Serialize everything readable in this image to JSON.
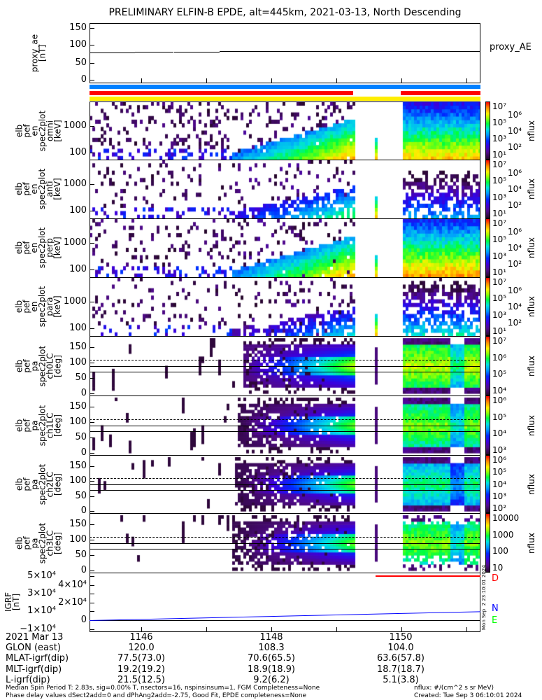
{
  "title": "PRELIMINARY ELFIN-B EPDE, alt=445km, 2021-03-13, North Descending",
  "colors": {
    "blue_bar": "#0080ff",
    "red_bar": "#ff0000",
    "yellow_bar": "#ffee00",
    "N": "#0000ff",
    "E": "#00ff00",
    "D": "#ff0000"
  },
  "chart_data": {
    "type": "heatmap",
    "x_axis": {
      "label": "2021 Mar 13",
      "ticks": [
        "1146",
        "1148",
        "1150"
      ],
      "range_hhmm": [
        1145.2,
        1151.2
      ]
    },
    "proxy_ae": {
      "ylabel": [
        "proxy_ae",
        "[nT]"
      ],
      "legend": "proxy_AE",
      "yticks": [
        "150",
        "100",
        "50",
        "0"
      ],
      "ylim": [
        0,
        150
      ],
      "series": {
        "x": [
          1145.2,
          1145.9,
          1146.5,
          1147.2,
          1151.2
        ],
        "y": [
          80,
          81,
          82,
          83,
          83
        ]
      }
    },
    "spectrograms": [
      {
        "ylabel": [
          "elb",
          "pef",
          "en",
          "spec2plot",
          "omni",
          "[keV]"
        ],
        "yticks": [
          "1000",
          "100"
        ],
        "cbar": [
          "10⁷",
          "10⁶",
          "10⁵",
          "10⁴",
          "10³",
          "10²",
          "10¹"
        ],
        "cbar_label": "nflux"
      },
      {
        "ylabel": [
          "elb",
          "pef",
          "en",
          "spec2plot",
          "anti",
          "[keV]"
        ],
        "yticks": [
          "1000",
          "100"
        ],
        "cbar": [
          "10⁷",
          "10⁶",
          "10⁵",
          "10⁴",
          "10³",
          "10²",
          "10¹"
        ],
        "cbar_label": "nflux"
      },
      {
        "ylabel": [
          "elb",
          "pef",
          "en",
          "spec2plot",
          "perp",
          "[keV]"
        ],
        "yticks": [
          "1000",
          "100"
        ],
        "cbar": [
          "10⁷",
          "10⁶",
          "10⁵",
          "10⁴",
          "10³",
          "10²",
          "10¹"
        ],
        "cbar_label": "nflux"
      },
      {
        "ylabel": [
          "elb",
          "pef",
          "en",
          "spec2plot",
          "para",
          "[keV]"
        ],
        "yticks": [
          "1000",
          "100"
        ],
        "cbar": [
          "10⁷",
          "10⁶",
          "10⁵",
          "10⁴",
          "10³",
          "10²",
          "10¹"
        ],
        "cbar_label": "nflux"
      }
    ],
    "pitch_angle": [
      {
        "ylabel": [
          "elb",
          "pef",
          "pa",
          "spec2plot",
          "ch0LC",
          "[deg]"
        ],
        "yticks": [
          "150",
          "100",
          "50",
          "0"
        ],
        "cbar": [
          "10⁷",
          "10⁶",
          "10⁵",
          "10⁴"
        ],
        "cbar_label": "nflux"
      },
      {
        "ylabel": [
          "elb",
          "pef",
          "pa",
          "spec2plot",
          "ch1LC",
          "[deg]"
        ],
        "yticks": [
          "150",
          "100",
          "50",
          "0"
        ],
        "cbar": [
          "10⁶",
          "10⁵",
          "10⁴",
          "10³"
        ],
        "cbar_label": "nflux"
      },
      {
        "ylabel": [
          "elb",
          "pef",
          "pa",
          "spec2plot",
          "ch2LC",
          "[deg]"
        ],
        "yticks": [
          "150",
          "100",
          "50",
          "0"
        ],
        "cbar": [
          "10⁶",
          "10⁵",
          "10⁴",
          "10³",
          "10²"
        ],
        "cbar_label": "nflux"
      },
      {
        "ylabel": [
          "elb",
          "pef",
          "pa",
          "spec2plot",
          "ch3LC",
          "[deg]"
        ],
        "yticks": [
          "150",
          "100",
          "50",
          "0"
        ],
        "cbar": [
          "10000",
          "1000",
          "100",
          "10"
        ],
        "cbar_label": "nflux"
      }
    ],
    "igrf": {
      "ylabel": [
        "IGRF",
        "[nT]"
      ],
      "yticks": [
        "5×10⁴",
        "4×10⁴",
        "3×10⁴",
        "2×10⁴",
        "1×10⁴",
        "0",
        "−1×10⁴"
      ],
      "ylim": [
        -10000,
        50000
      ],
      "legend": [
        "D",
        "N",
        "E"
      ],
      "stamp": "Mon Sep  2 23:10:01 2024"
    }
  },
  "ephemeris": {
    "rows": [
      {
        "label": "2021 Mar 13",
        "values": [
          "1146",
          "1148",
          "1150"
        ]
      },
      {
        "label": "GLON (east)",
        "values": [
          "120.0",
          "108.3",
          "104.0"
        ]
      },
      {
        "label": "MLAT-igrf(dip)",
        "values": [
          "77.5(73.0)",
          "70.6(65.5)",
          "63.6(57.8)"
        ]
      },
      {
        "label": "MLT-igrf(dip)",
        "values": [
          "19.2(19.2)",
          "18.9(18.9)",
          "18.7(18.7)"
        ]
      },
      {
        "label": "L-igrf(dip)",
        "values": [
          "21.5(12.5)",
          "9.2(6.2)",
          "5.1(3.8)"
        ]
      }
    ]
  },
  "footer": {
    "line1": "Median Spin Period T: 2.83s, sig=0.00% T, nsectors=16, nspinsinsum=1, FGM Completeness=None",
    "line2": "Phase delay values dSect2add=0 and dPhAng2add=-2.75, Good Fit, EPDE completeness=None",
    "units": "nflux: #/(cm^2 s sr MeV)",
    "created": "Created: Tue Sep  3 06:10:01 2024"
  }
}
